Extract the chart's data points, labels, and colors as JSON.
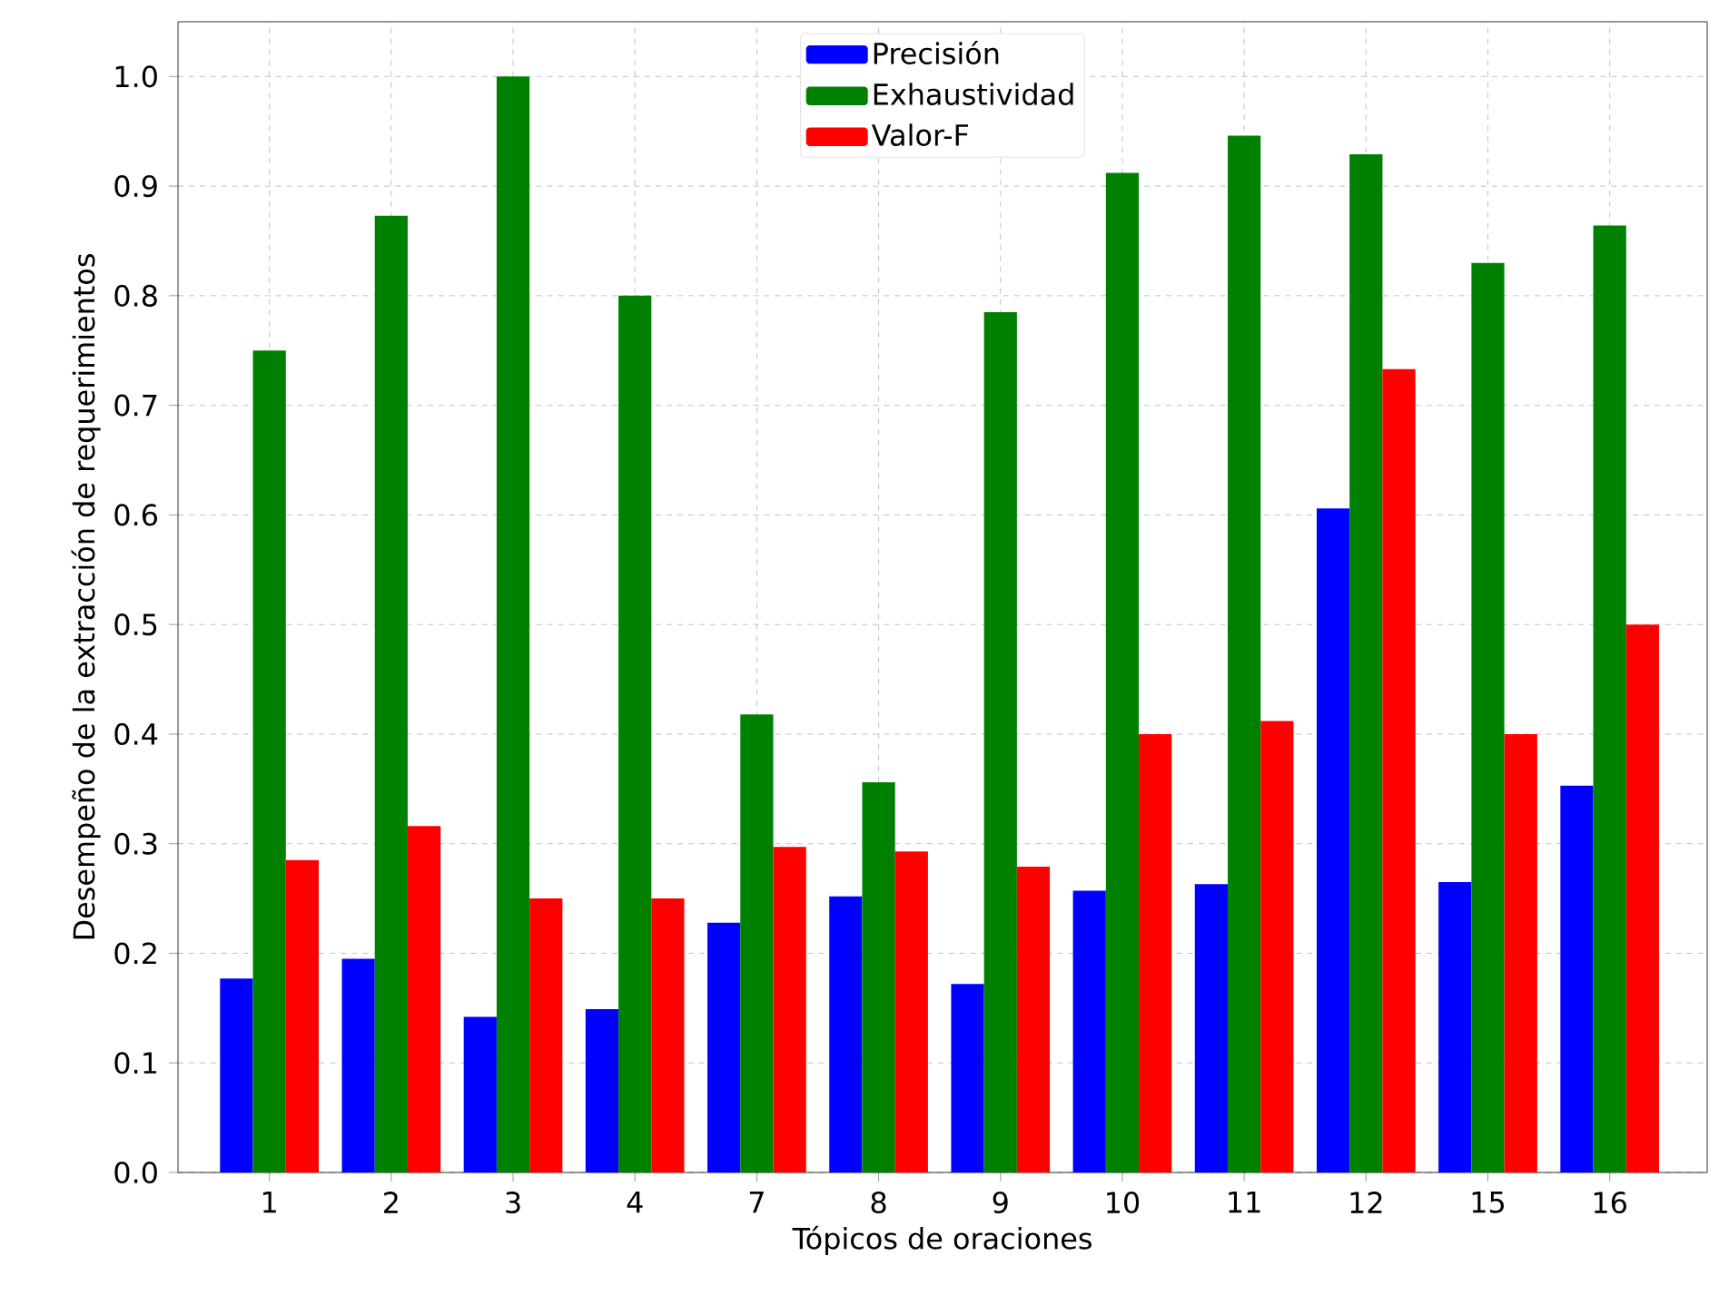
{
  "chart_data": {
    "type": "bar",
    "xlabel": "Tópicos de oraciones",
    "ylabel": "Desempeño de la extracción de requerimientos",
    "categories": [
      "1",
      "2",
      "3",
      "4",
      "7",
      "8",
      "9",
      "10",
      "11",
      "12",
      "15",
      "16"
    ],
    "series": [
      {
        "name": "Precisión",
        "color": "#0000ff",
        "values": [
          0.177,
          0.195,
          0.142,
          0.149,
          0.228,
          0.252,
          0.172,
          0.257,
          0.263,
          0.606,
          0.265,
          0.353
        ]
      },
      {
        "name": "Exhaustividad",
        "color": "#008000",
        "values": [
          0.75,
          0.873,
          1.0,
          0.8,
          0.418,
          0.356,
          0.785,
          0.912,
          0.946,
          0.929,
          0.83,
          0.864
        ]
      },
      {
        "name": "Valor-F",
        "color": "#ff0000",
        "values": [
          0.285,
          0.316,
          0.25,
          0.25,
          0.297,
          0.293,
          0.279,
          0.4,
          0.412,
          0.733,
          0.4,
          0.5
        ]
      }
    ],
    "ylim": [
      0,
      1.05
    ],
    "yticks": [
      {
        "value": 0.0,
        "label": "0.0"
      },
      {
        "value": 0.1,
        "label": "0.1"
      },
      {
        "value": 0.2,
        "label": "0.2"
      },
      {
        "value": 0.3,
        "label": "0.3"
      },
      {
        "value": 0.4,
        "label": "0.4"
      },
      {
        "value": 0.5,
        "label": "0.5"
      },
      {
        "value": 0.6,
        "label": "0.6"
      },
      {
        "value": 0.7,
        "label": "0.7"
      },
      {
        "value": 0.8,
        "label": "0.8"
      },
      {
        "value": 0.9,
        "label": "0.9"
      },
      {
        "value": 1.0,
        "label": "1.0"
      }
    ],
    "grid": true,
    "legend": "top"
  }
}
